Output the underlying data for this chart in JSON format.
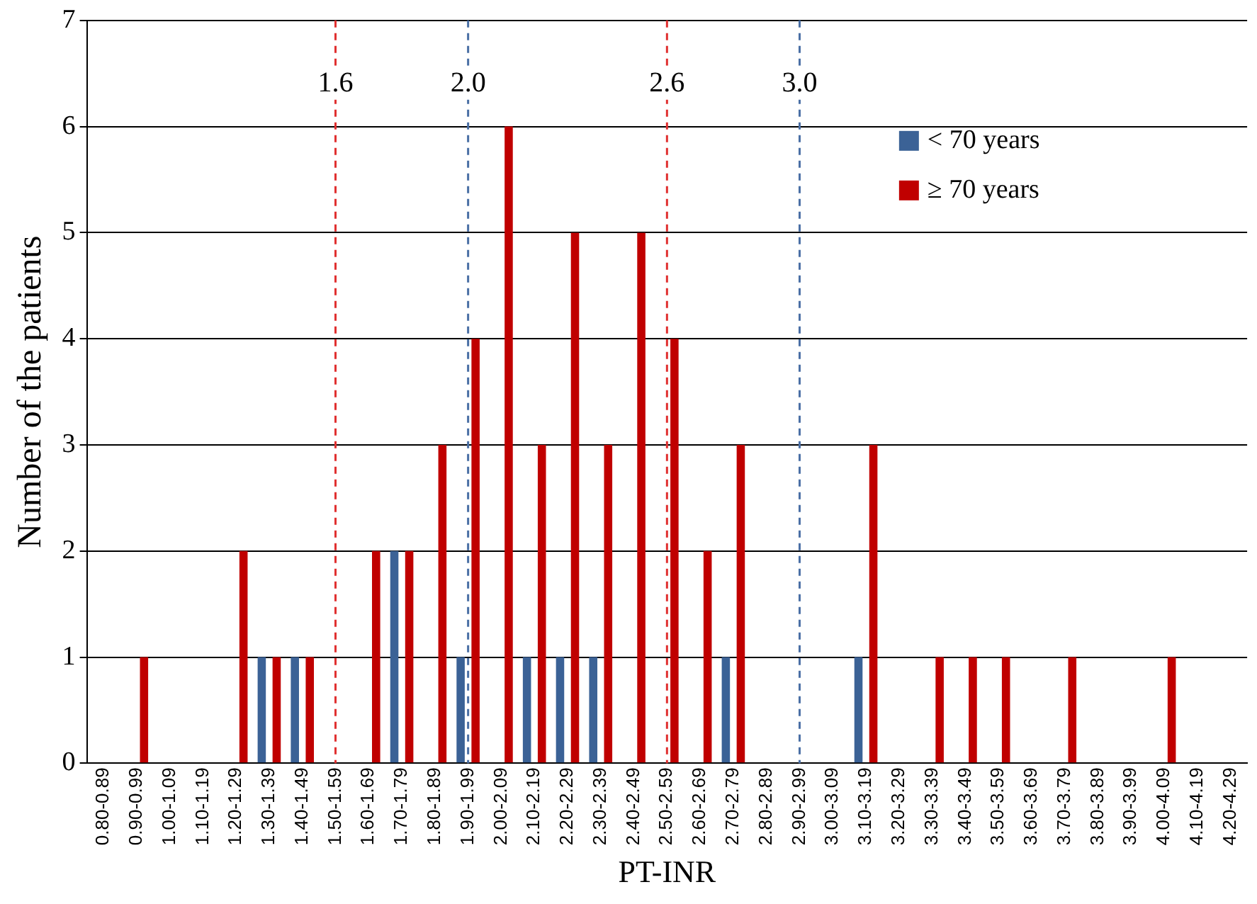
{
  "chart_data": {
    "type": "bar",
    "xlabel": "PT-INR",
    "ylabel": "Number of the patients",
    "categories": [
      "0.80-0.89",
      "0.90-0.99",
      "1.00-1.09",
      "1.10-1.19",
      "1.20-1.29",
      "1.30-1.39",
      "1.40-1.49",
      "1.50-1.59",
      "1.60-1.69",
      "1.70-1.79",
      "1.80-1.89",
      "1.90-1.99",
      "2.00-2.09",
      "2.10-2.19",
      "2.20-2.29",
      "2.30-2.39",
      "2.40-2.49",
      "2.50-2.59",
      "2.60-2.69",
      "2.70-2.79",
      "2.80-2.89",
      "2.90-2.99",
      "3.00-3.09",
      "3.10-3.19",
      "3.20-3.29",
      "3.30-3.39",
      "3.40-3.49",
      "3.50-3.59",
      "3.60-3.69",
      "3.70-3.79",
      "3.80-3.89",
      "3.90-3.99",
      "4.00-4.09",
      "4.10-4.19",
      "4.20-4.29"
    ],
    "series": [
      {
        "name": "< 70 years",
        "color": "#3b6296",
        "values": [
          0,
          0,
          0,
          0,
          0,
          1,
          1,
          0,
          0,
          2,
          0,
          1,
          0,
          1,
          1,
          1,
          0,
          0,
          0,
          1,
          0,
          0,
          0,
          1,
          0,
          0,
          0,
          0,
          0,
          0,
          0,
          0,
          0,
          0,
          0
        ]
      },
      {
        "name": "≥ 70 years",
        "color": "#c00000",
        "values": [
          0,
          1,
          0,
          0,
          2,
          1,
          1,
          0,
          2,
          2,
          3,
          4,
          6,
          3,
          5,
          3,
          5,
          4,
          2,
          3,
          0,
          0,
          0,
          3,
          0,
          1,
          1,
          1,
          0,
          1,
          0,
          0,
          1,
          0,
          0
        ]
      }
    ],
    "ylim": [
      0,
      7
    ],
    "yticks": [
      0,
      1,
      2,
      3,
      4,
      5,
      6,
      7
    ],
    "grid": "y",
    "legend": "top right",
    "ref_lines": [
      {
        "axis": "x",
        "value": "1.50-1.59",
        "label": "1.6",
        "color": "#e03030",
        "line_style": "dashed"
      },
      {
        "axis": "x",
        "value": "1.90-1.99",
        "label": "2.0",
        "color": "#4a6fa5",
        "line_style": "dashed"
      },
      {
        "axis": "x",
        "value": "2.50-2.59",
        "label": "2.6",
        "color": "#e03030",
        "line_style": "dashed"
      },
      {
        "axis": "x",
        "value": "2.90-2.99",
        "label": "3.0",
        "color": "#4a6fa5",
        "line_style": "dashed"
      }
    ]
  }
}
